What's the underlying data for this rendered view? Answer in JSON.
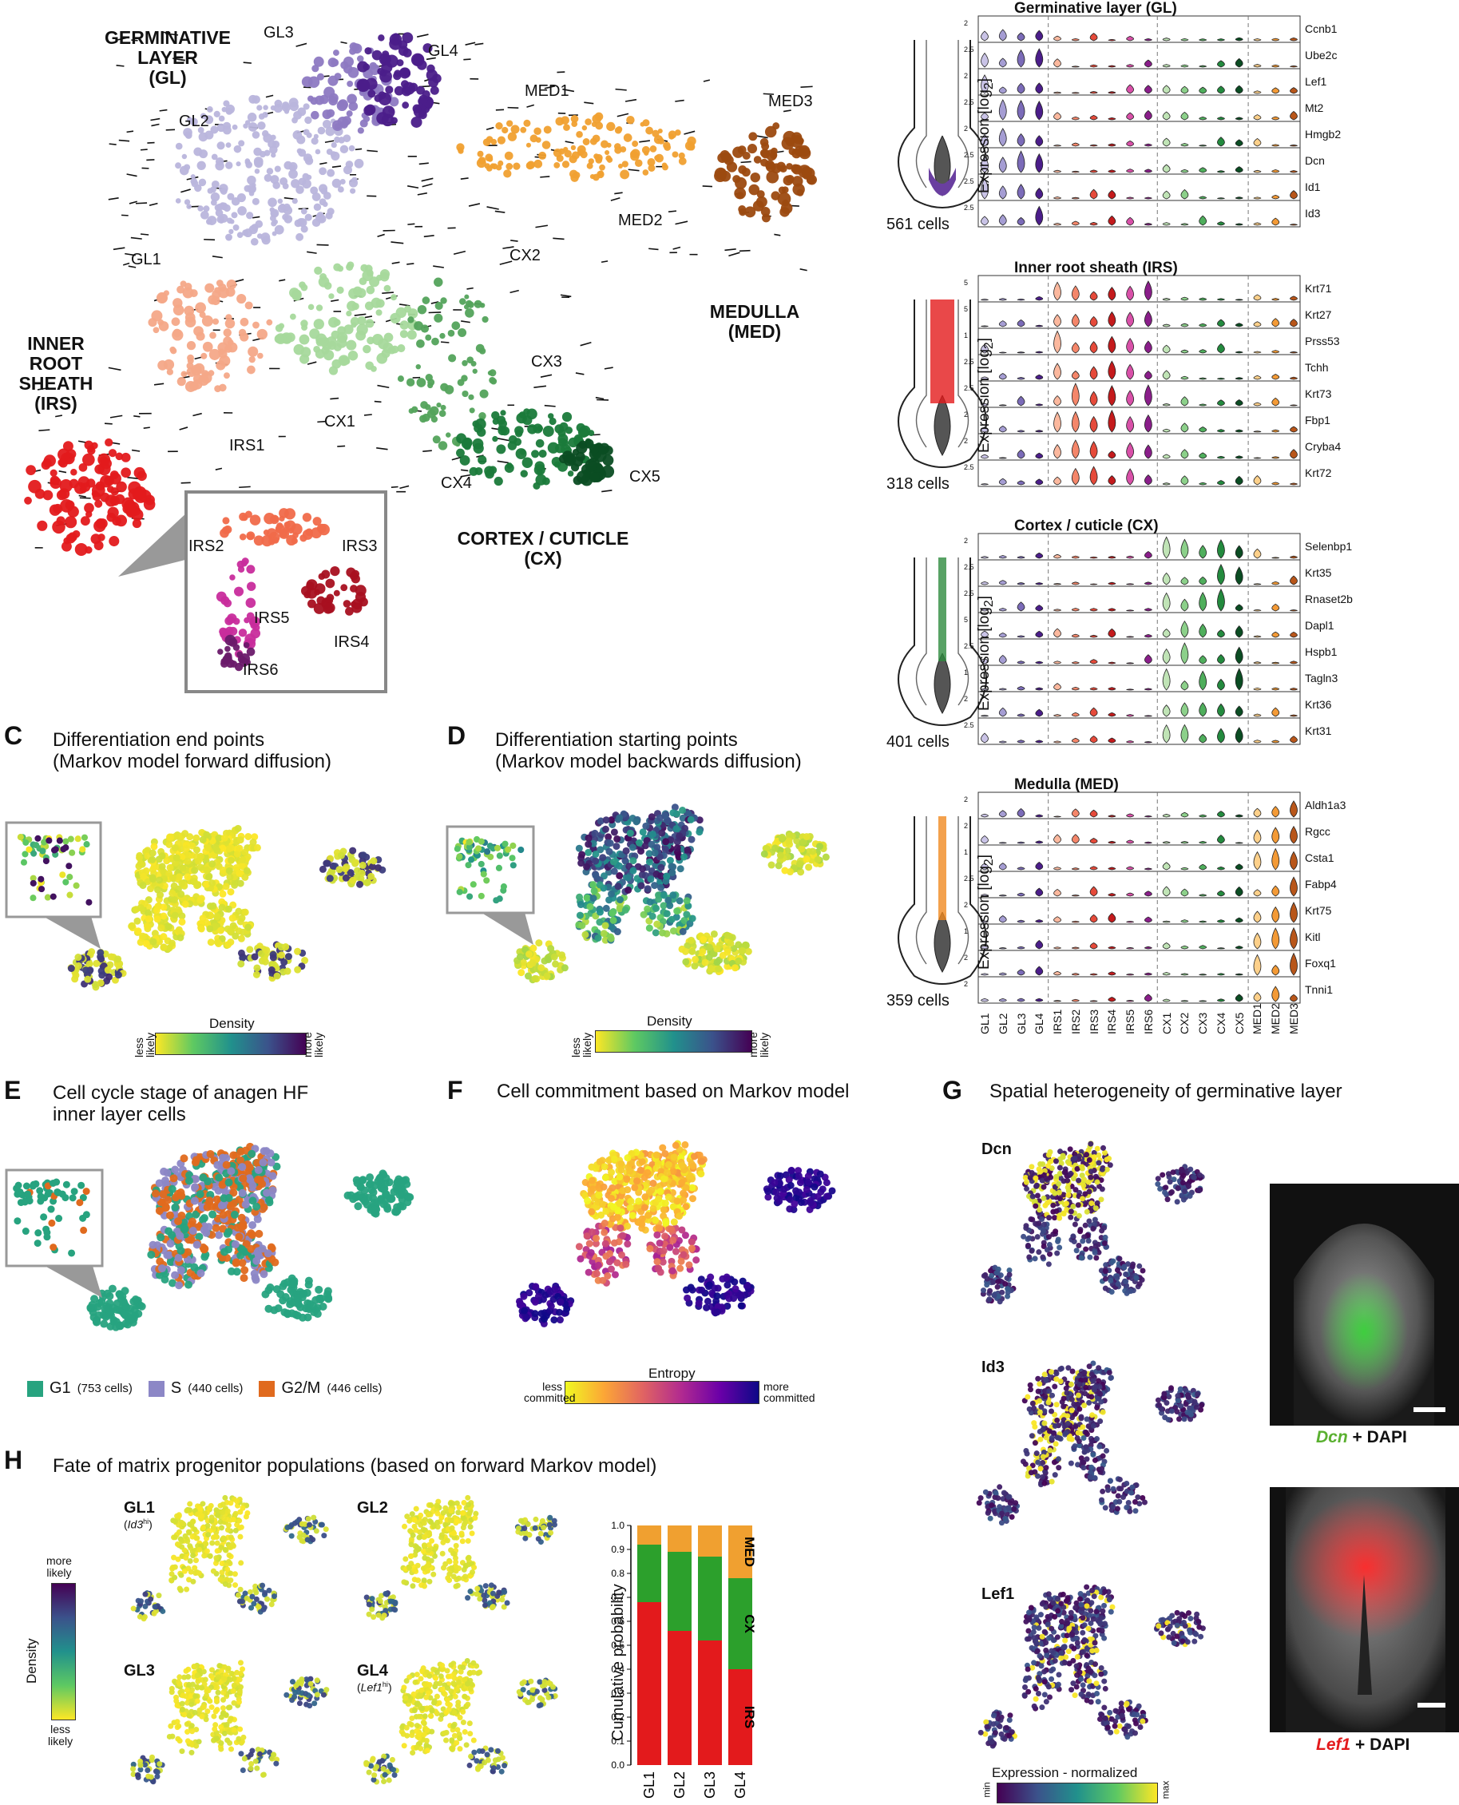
{
  "panelA": {
    "group_labels": {
      "gl": "GERMINATIVE\nLAYER\n(GL)",
      "irs": "INNER\nROOT\nSHEATH\n(IRS)",
      "med": "MEDULLA\n(MED)",
      "cx": "CORTEX / CUTICLE\n(CX)"
    },
    "clusters": [
      "GL1",
      "GL2",
      "GL3",
      "GL4",
      "IRS1",
      "IRS2",
      "IRS3",
      "IRS4",
      "IRS5",
      "IRS6",
      "CX1",
      "CX2",
      "CX3",
      "CX4",
      "CX5",
      "MED1",
      "MED2",
      "MED3"
    ],
    "colors": {
      "gl": "#b9b5dc",
      "gl4": "#4b1d8a",
      "irs1": "#f4a888",
      "irs": "#e31a1c",
      "cx1": "#a6d99c",
      "cx": "#1a7a3a",
      "cx5": "#0b4d23",
      "med": "#f0a030",
      "med3": "#9c4a10"
    }
  },
  "panelB": {
    "sections": [
      {
        "title": "Germinative layer (GL)",
        "cells": "561 cells",
        "ylabel": "Expression [log",
        "ysub": "2",
        "ysuffix": "]",
        "genes": [
          "Ccnb1",
          "Ube2c",
          "Lef1",
          "Mt2",
          "Hmgb2",
          "Dcn",
          "Id1",
          "Id3"
        ],
        "tick": [
          "2",
          "2.5",
          "2",
          "2.5",
          "2",
          "2.5",
          "2.5",
          "2.5"
        ],
        "color": "#6a3fa0"
      },
      {
        "title": "Inner root sheath (IRS)",
        "cells": "318 cells",
        "ylabel": "Expression [log",
        "ysub": "2",
        "ysuffix": "]",
        "genes": [
          "Krt71",
          "Krt27",
          "Prss53",
          "Tchh",
          "Krt73",
          "Fbp1",
          "Cryba4",
          "Krt72"
        ],
        "tick": [
          "5",
          "5",
          "1",
          "2.5",
          "2.5",
          "2",
          "2",
          "2.5"
        ],
        "color": "#e31a1c"
      },
      {
        "title": "Cortex / cuticle (CX)",
        "cells": "401 cells",
        "ylabel": "Expression [log",
        "ysub": "2",
        "ysuffix": "]",
        "genes": [
          "Selenbp1",
          "Krt35",
          "Rnaset2b",
          "Dapl1",
          "Hspb1",
          "Tagln3",
          "Krt36",
          "Krt31"
        ],
        "tick": [
          "2",
          "2.5",
          "2.5",
          "5",
          "2.5",
          "1",
          "2",
          "2.5"
        ],
        "color": "#2e8b3e"
      },
      {
        "title": "Medulla (MED)",
        "cells": "359 cells",
        "ylabel": "Expression [log",
        "ysub": "2",
        "ysuffix": "]",
        "genes": [
          "Aldh1a3",
          "Rgcc",
          "Csta1",
          "Fabp4",
          "Krt75",
          "Kitl",
          "Foxq1",
          "Tnni1"
        ],
        "tick": [
          "2",
          "2",
          "1",
          "2.5",
          "2",
          "1",
          "2",
          "2"
        ],
        "color": "#f08a20"
      }
    ],
    "xclusters": [
      "GL1",
      "GL2",
      "GL3",
      "GL4",
      "IRS1",
      "IRS2",
      "IRS3",
      "IRS4",
      "IRS5",
      "IRS6",
      "CX1",
      "CX2",
      "CX3",
      "CX4",
      "CX5",
      "MED1",
      "MED2",
      "MED3"
    ]
  },
  "panelC": {
    "letter": "C",
    "title": "Differentiation end points\n(Markov model forward diffusion)",
    "cbar_title": "Density",
    "left": "less\nlikely",
    "right": "more\nlikely"
  },
  "panelD": {
    "letter": "D",
    "title": "Differentiation starting points\n(Markov model backwards diffusion)",
    "cbar_title": "Density",
    "left": "less\nlikely",
    "right": "more\nlikely"
  },
  "panelE": {
    "letter": "E",
    "title": "Cell cycle stage of anagen HF\ninner layer cells",
    "legend": [
      {
        "label": "G1",
        "count": "(753 cells)",
        "color": "#27a37f"
      },
      {
        "label": "S",
        "count": "(440 cells)",
        "color": "#8c87c6"
      },
      {
        "label": "G2/M",
        "count": "(446 cells)",
        "color": "#e06a1e"
      }
    ]
  },
  "panelF": {
    "letter": "F",
    "title": "Cell commitment based on Markov model",
    "cbar_title": "Entropy",
    "left": "less\ncommitted",
    "right": "more\ncommitted"
  },
  "panelG": {
    "letter": "G",
    "title": "Spatial heterogeneity of germinative layer",
    "genes": [
      "Dcn",
      "Id3",
      "Lef1"
    ],
    "cbar_title": "Expression - normalized",
    "cbar_min": "min",
    "cbar_max": "max",
    "img1_gene": "Dcn",
    "img1_rest": " + DAPI",
    "img2_gene": "Lef1",
    "img2_rest": " + DAPI"
  },
  "panelH": {
    "letter": "H",
    "title": "Fate of matrix progenitor populations (based on forward Markov model)",
    "cbar_title": "Density",
    "cbar_top": "more\nlikely",
    "cbar_bottom": "less\nlikely",
    "subplots": [
      {
        "name": "GL1",
        "note": "Id3",
        "sup": "hi"
      },
      {
        "name": "GL2",
        "note": "",
        "sup": ""
      },
      {
        "name": "GL3",
        "note": "",
        "sup": ""
      },
      {
        "name": "GL4",
        "note": "Lef1",
        "sup": "hi"
      }
    ]
  },
  "chart_data": {
    "type": "bar",
    "stacked": true,
    "categories": [
      "GL1",
      "GL2",
      "GL3",
      "GL4"
    ],
    "series": [
      {
        "name": "IRS",
        "values": [
          0.68,
          0.56,
          0.52,
          0.4
        ],
        "color": "#e31a1c"
      },
      {
        "name": "CX",
        "values": [
          0.24,
          0.33,
          0.35,
          0.38
        ],
        "color": "#2ca02c"
      },
      {
        "name": "MED",
        "values": [
          0.08,
          0.11,
          0.13,
          0.22
        ],
        "color": "#f0a030"
      }
    ],
    "ylabel": "Cumulative probability",
    "ylim": [
      0,
      1.0
    ],
    "yticks": [
      "0.0",
      "0.1",
      "0.2",
      "0.3",
      "0.4",
      "0.5",
      "0.6",
      "0.7",
      "0.8",
      "0.9",
      "1.0"
    ]
  }
}
